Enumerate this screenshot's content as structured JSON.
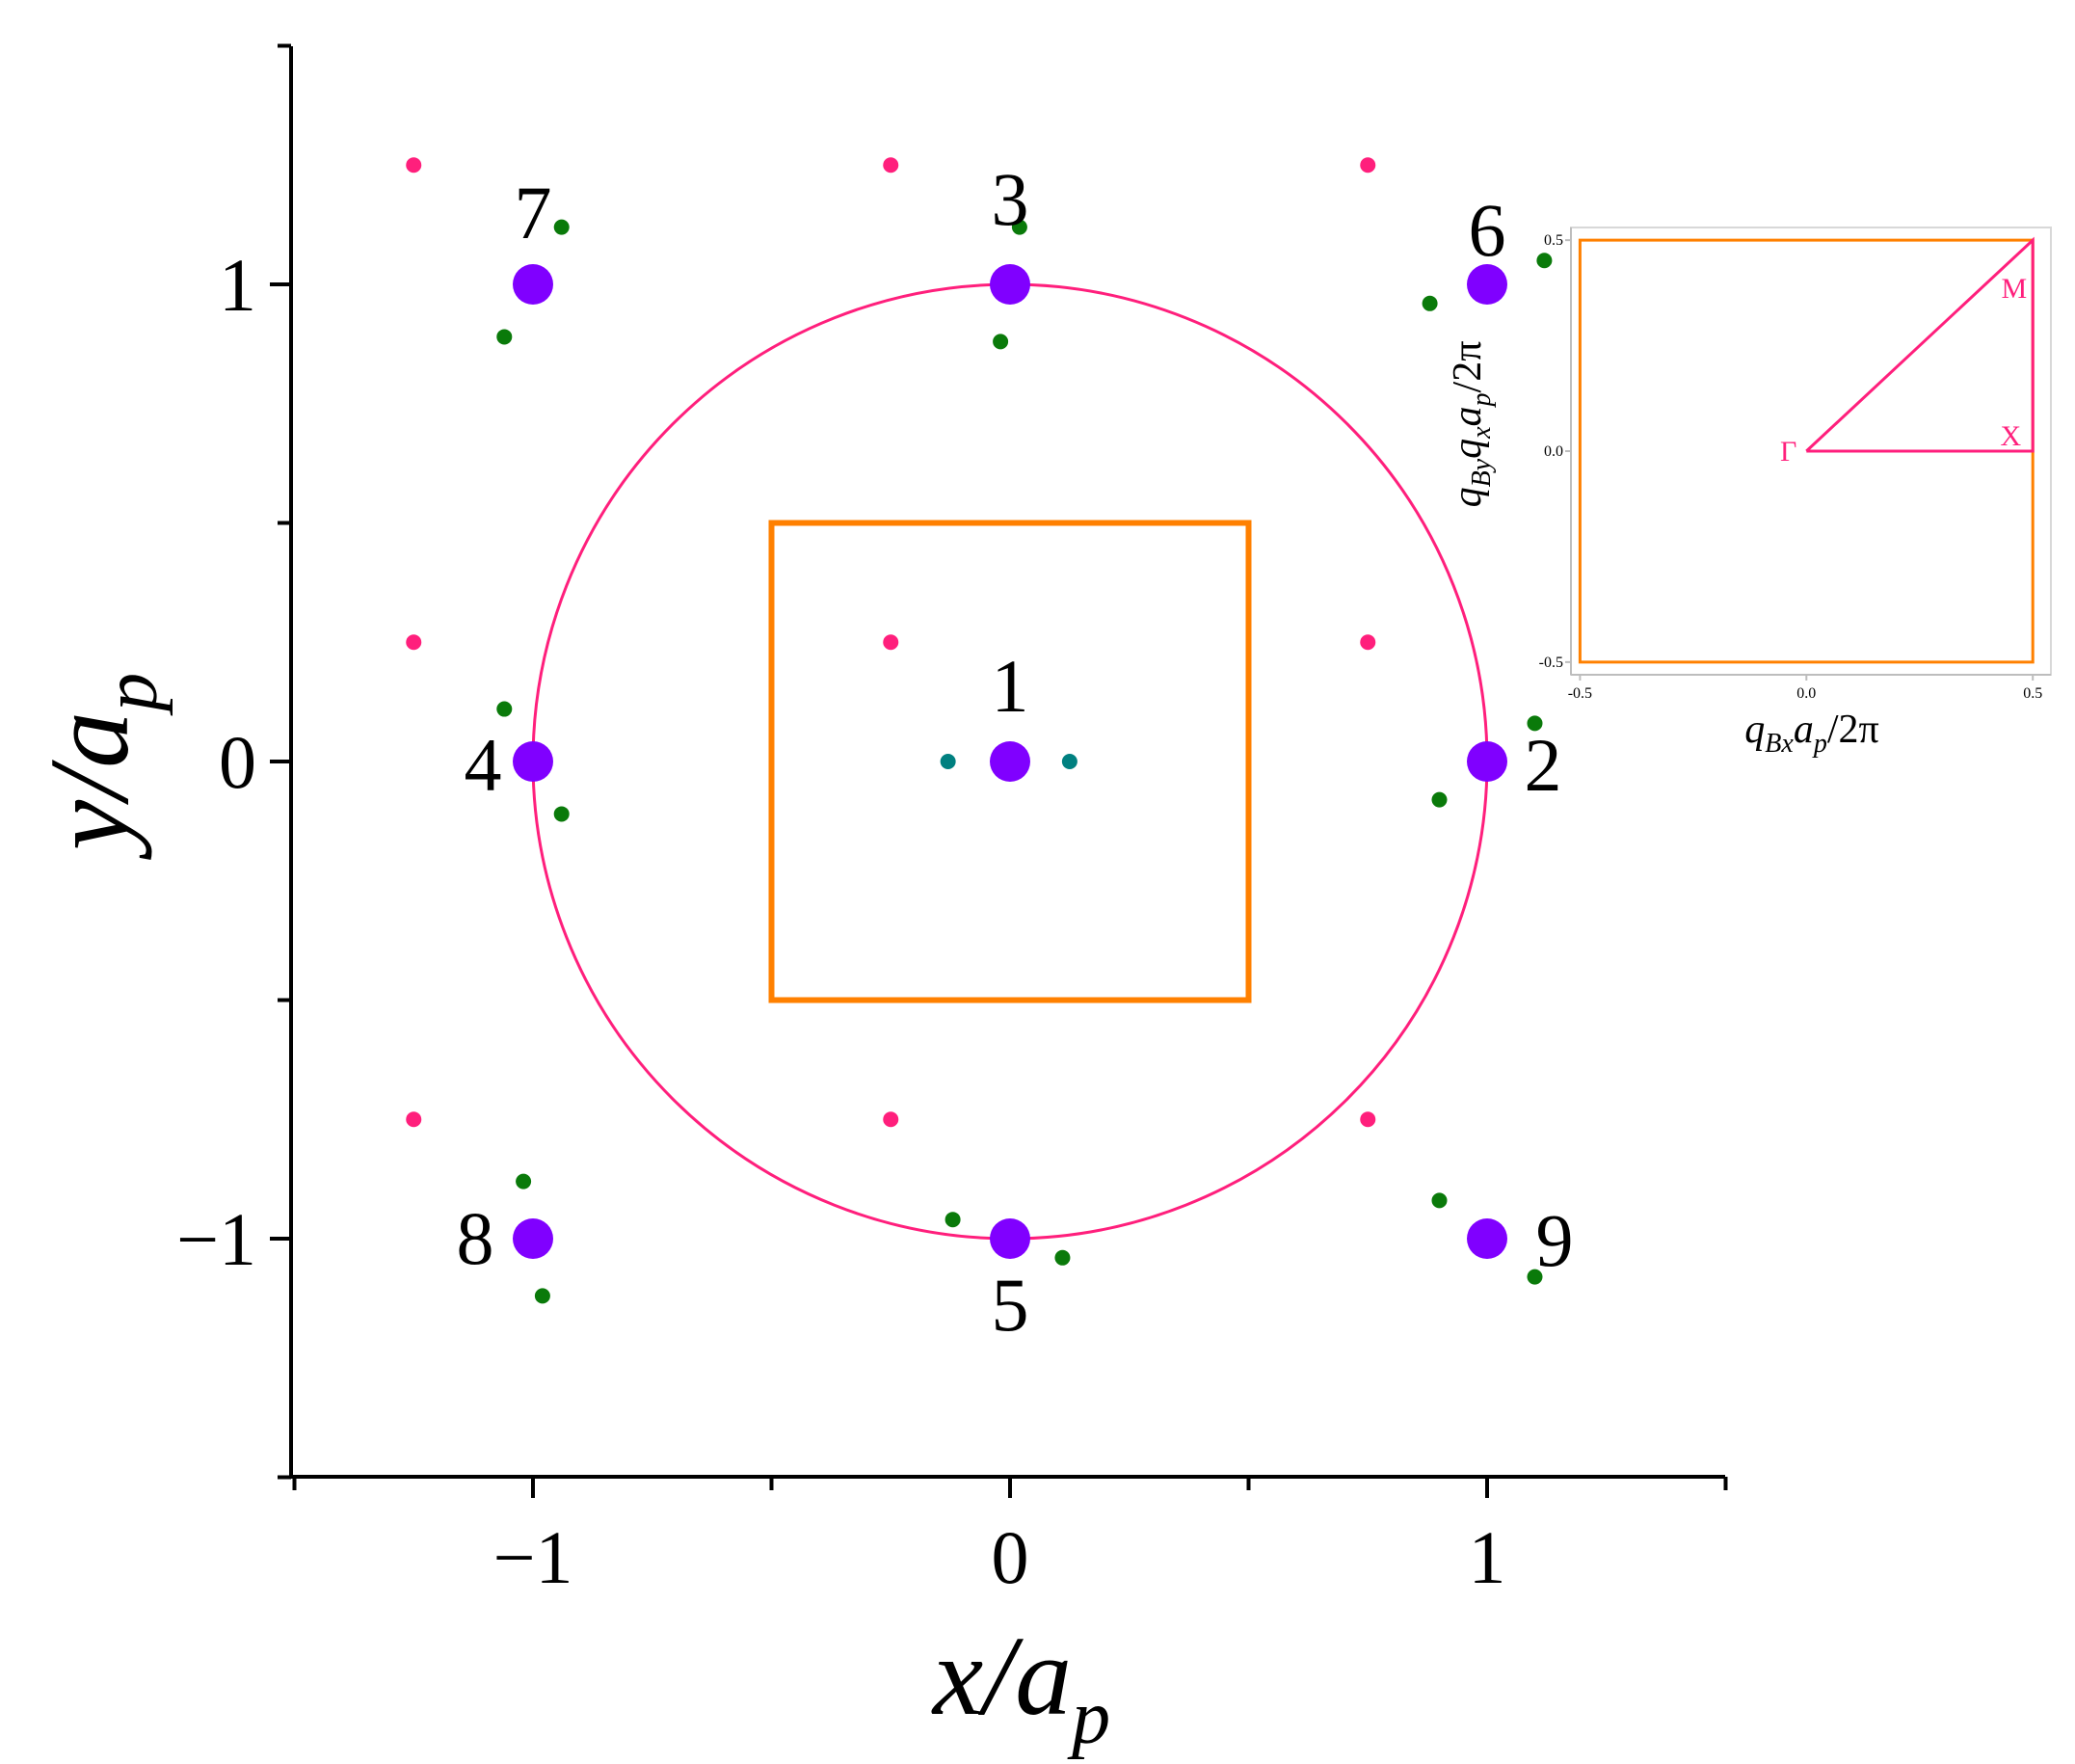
{
  "colors": {
    "axis": "#000000",
    "major_atom": "#8000ff",
    "minor_pink": "#ff1f7c",
    "minor_green": "#0a7a0a",
    "minor_teal": "#008080",
    "circle": "#ff1f7c",
    "bz_square": "#ff8000",
    "inset_path": "#ff1f7c",
    "inset_box": "#ff8000",
    "text": "#000000"
  },
  "chart_data": [
    {
      "type": "scatter",
      "xlabel": "x/a",
      "xlabel_sub": "p",
      "ylabel": "y/a",
      "ylabel_sub": "p",
      "xlim": [
        -1.5,
        1.5
      ],
      "ylim": [
        -1.5,
        1.5
      ],
      "x_ticks": [
        -1,
        0,
        1
      ],
      "y_ticks": [
        -1,
        0,
        1
      ],
      "x_tick_labels": [
        "−1",
        "0",
        "1"
      ],
      "y_tick_labels": [
        "−1",
        "0",
        "1"
      ],
      "grid": false,
      "circle": {
        "center": [
          0,
          0
        ],
        "radius": 1.0
      },
      "square": {
        "x": [
          -0.5,
          0.5
        ],
        "y": [
          -0.5,
          0.5
        ]
      },
      "series": [
        {
          "role": "main-points",
          "points": [
            {
              "x": 0,
              "y": 0,
              "label": "1"
            },
            {
              "x": 1,
              "y": 0,
              "label": "2"
            },
            {
              "x": 0,
              "y": 1,
              "label": "3"
            },
            {
              "x": -1,
              "y": 0,
              "label": "4"
            },
            {
              "x": 0,
              "y": -1,
              "label": "5"
            },
            {
              "x": 1,
              "y": 1,
              "label": "6"
            },
            {
              "x": -1,
              "y": 1,
              "label": "7"
            },
            {
              "x": -1,
              "y": -1,
              "label": "8"
            },
            {
              "x": 1,
              "y": -1,
              "label": "9"
            }
          ]
        },
        {
          "role": "pink-points",
          "points": [
            {
              "x": -1.25,
              "y": 1.25
            },
            {
              "x": -0.25,
              "y": 1.25
            },
            {
              "x": 0.75,
              "y": 1.25
            },
            {
              "x": -1.25,
              "y": 0.25
            },
            {
              "x": -0.25,
              "y": 0.25
            },
            {
              "x": 0.75,
              "y": 0.25
            },
            {
              "x": -1.25,
              "y": -0.75
            },
            {
              "x": -0.25,
              "y": -0.75
            },
            {
              "x": 0.75,
              "y": -0.75
            }
          ]
        },
        {
          "role": "green-points",
          "points": [
            {
              "x": 0.02,
              "y": 1.12
            },
            {
              "x": -0.02,
              "y": 0.88
            },
            {
              "x": -0.94,
              "y": 1.12
            },
            {
              "x": -1.06,
              "y": 0.89
            },
            {
              "x": 0.88,
              "y": 0.96
            },
            {
              "x": 1.12,
              "y": 1.05
            },
            {
              "x": -1.06,
              "y": 0.11
            },
            {
              "x": -0.94,
              "y": -0.11
            },
            {
              "x": 1.1,
              "y": 0.08
            },
            {
              "x": 0.9,
              "y": -0.08
            },
            {
              "x": -1.02,
              "y": -0.88
            },
            {
              "x": -0.98,
              "y": -1.12
            },
            {
              "x": -0.12,
              "y": -0.96
            },
            {
              "x": 0.11,
              "y": -1.04
            },
            {
              "x": 0.9,
              "y": -0.92
            },
            {
              "x": 1.1,
              "y": -1.08
            }
          ]
        },
        {
          "role": "teal-points",
          "points": [
            {
              "x": -0.13,
              "y": 0
            },
            {
              "x": 0.125,
              "y": 0
            }
          ]
        }
      ]
    },
    {
      "type": "line",
      "role": "inset",
      "xlabel": "q",
      "xlabel_sub": "Bx",
      "xlabel_rest": "a",
      "xlabel_rest_sub": "p",
      "xlabel_tail": "/2π",
      "ylabel": "q",
      "ylabel_sub": "By",
      "ylabel_mid": "q",
      "ylabel_mid_sub": "x",
      "ylabel_rest": "a",
      "ylabel_rest_sub": "p",
      "ylabel_tail": "/2π",
      "xlim": [
        -0.52,
        0.54
      ],
      "ylim": [
        -0.53,
        0.53
      ],
      "x_tick_labels": [
        "-0.5",
        "0.0",
        "0.5"
      ],
      "y_tick_labels": [
        "-0.5",
        "0.0",
        "0.5"
      ],
      "x_ticks": [
        -0.5,
        0.0,
        0.5
      ],
      "y_ticks": [
        -0.5,
        0.0,
        0.5
      ],
      "bz_box": {
        "x": [
          -0.5,
          0.5
        ],
        "y": [
          -0.5,
          0.5
        ]
      },
      "path": {
        "points": [
          [
            0,
            0
          ],
          [
            0.5,
            0
          ],
          [
            0.5,
            0.5
          ],
          [
            0,
            0
          ]
        ],
        "labels": [
          {
            "text": "Γ",
            "x": 0,
            "y": 0
          },
          {
            "text": "X",
            "x": 0.5,
            "y": 0
          },
          {
            "text": "M",
            "x": 0.5,
            "y": 0.5
          }
        ]
      }
    }
  ]
}
